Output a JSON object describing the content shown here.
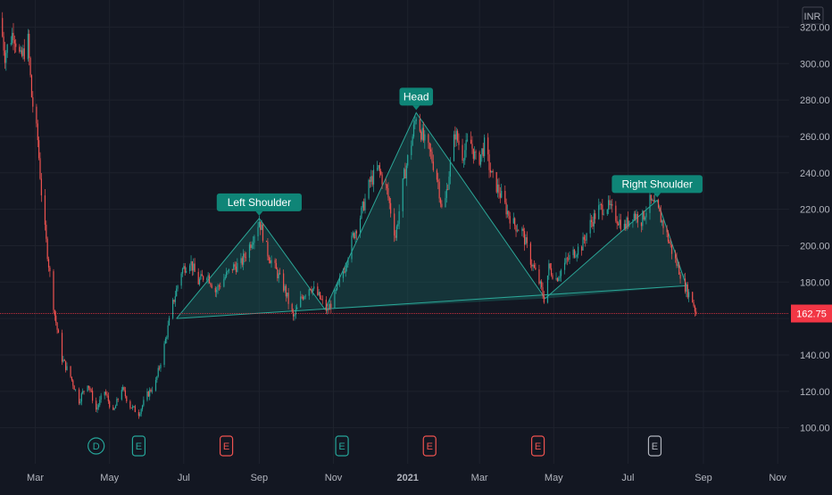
{
  "chart_data": {
    "type": "candlestick",
    "currency": "INR",
    "ylim": [
      92,
      330
    ],
    "y_ticks": [
      100,
      120,
      140,
      160,
      180,
      200,
      220,
      240,
      260,
      280,
      300,
      320
    ],
    "y_tick_labels": [
      "100.00",
      "120.00",
      "140.00",
      "160.00",
      "180.00",
      "200.00",
      "220.00",
      "240.00",
      "260.00",
      "280.00",
      "300.00",
      "320.00"
    ],
    "x_range": [
      "2020-02-01",
      "2021-11-15"
    ],
    "x_ticks": [
      {
        "date": "2020-03-01",
        "label": "Mar"
      },
      {
        "date": "2020-05-01",
        "label": "May"
      },
      {
        "date": "2020-07-01",
        "label": "Jul"
      },
      {
        "date": "2020-09-01",
        "label": "Sep"
      },
      {
        "date": "2020-11-01",
        "label": "Nov"
      },
      {
        "date": "2021-01-01",
        "label": "2021"
      },
      {
        "date": "2021-03-01",
        "label": "Mar"
      },
      {
        "date": "2021-05-01",
        "label": "May"
      },
      {
        "date": "2021-07-01",
        "label": "Jul"
      },
      {
        "date": "2021-09-01",
        "label": "Sep"
      },
      {
        "date": "2021-11-01",
        "label": "Nov"
      }
    ],
    "price_path": [
      [
        "2020-02-01",
        325
      ],
      [
        "2020-02-05",
        305
      ],
      [
        "2020-02-12",
        318
      ],
      [
        "2020-02-18",
        302
      ],
      [
        "2020-02-24",
        312
      ],
      [
        "2020-02-27",
        282
      ],
      [
        "2020-03-03",
        258
      ],
      [
        "2020-03-07",
        220
      ],
      [
        "2020-03-12",
        190
      ],
      [
        "2020-03-17",
        162
      ],
      [
        "2020-03-23",
        138
      ],
      [
        "2020-03-30",
        128
      ],
      [
        "2020-04-06",
        115
      ],
      [
        "2020-04-13",
        125
      ],
      [
        "2020-04-20",
        110
      ],
      [
        "2020-04-27",
        120
      ],
      [
        "2020-05-04",
        108
      ],
      [
        "2020-05-11",
        122
      ],
      [
        "2020-05-18",
        112
      ],
      [
        "2020-05-25",
        108
      ],
      [
        "2020-06-01",
        118
      ],
      [
        "2020-06-08",
        125
      ],
      [
        "2020-06-15",
        145
      ],
      [
        "2020-06-22",
        168
      ],
      [
        "2020-06-29",
        186
      ],
      [
        "2020-07-06",
        192
      ],
      [
        "2020-07-13",
        180
      ],
      [
        "2020-07-20",
        185
      ],
      [
        "2020-07-27",
        175
      ],
      [
        "2020-08-03",
        182
      ],
      [
        "2020-08-10",
        188
      ],
      [
        "2020-08-17",
        190
      ],
      [
        "2020-08-24",
        200
      ],
      [
        "2020-09-01",
        214
      ],
      [
        "2020-09-08",
        196
      ],
      [
        "2020-09-15",
        186
      ],
      [
        "2020-09-22",
        176
      ],
      [
        "2020-09-29",
        160
      ],
      [
        "2020-10-06",
        172
      ],
      [
        "2020-10-13",
        178
      ],
      [
        "2020-10-20",
        172
      ],
      [
        "2020-10-27",
        164
      ],
      [
        "2020-11-03",
        174
      ],
      [
        "2020-11-10",
        188
      ],
      [
        "2020-11-17",
        205
      ],
      [
        "2020-11-24",
        218
      ],
      [
        "2020-12-01",
        235
      ],
      [
        "2020-12-08",
        242
      ],
      [
        "2020-12-15",
        230
      ],
      [
        "2020-12-22",
        205
      ],
      [
        "2020-12-29",
        238
      ],
      [
        "2021-01-05",
        260
      ],
      [
        "2021-01-08",
        272
      ],
      [
        "2021-01-14",
        258
      ],
      [
        "2021-01-20",
        250
      ],
      [
        "2021-01-26",
        235
      ],
      [
        "2021-01-30",
        215
      ],
      [
        "2021-02-04",
        240
      ],
      [
        "2021-02-09",
        262
      ],
      [
        "2021-02-15",
        250
      ],
      [
        "2021-02-21",
        258
      ],
      [
        "2021-02-27",
        245
      ],
      [
        "2021-03-05",
        255
      ],
      [
        "2021-03-11",
        238
      ],
      [
        "2021-03-17",
        230
      ],
      [
        "2021-03-23",
        220
      ],
      [
        "2021-03-29",
        212
      ],
      [
        "2021-04-05",
        208
      ],
      [
        "2021-04-12",
        192
      ],
      [
        "2021-04-19",
        180
      ],
      [
        "2021-04-23",
        171
      ],
      [
        "2021-04-27",
        188
      ],
      [
        "2021-05-03",
        182
      ],
      [
        "2021-05-10",
        190
      ],
      [
        "2021-05-17",
        196
      ],
      [
        "2021-05-24",
        200
      ],
      [
        "2021-05-31",
        212
      ],
      [
        "2021-06-07",
        220
      ],
      [
        "2021-06-14",
        222
      ],
      [
        "2021-06-21",
        216
      ],
      [
        "2021-06-28",
        210
      ],
      [
        "2021-07-05",
        218
      ],
      [
        "2021-07-12",
        214
      ],
      [
        "2021-07-19",
        224
      ],
      [
        "2021-07-25",
        220
      ],
      [
        "2021-08-01",
        208
      ],
      [
        "2021-08-07",
        195
      ],
      [
        "2021-08-13",
        185
      ],
      [
        "2021-08-18",
        176
      ],
      [
        "2021-08-23",
        170
      ],
      [
        "2021-08-26",
        162.75
      ]
    ],
    "last_price": 162.75,
    "last_price_label": "162.75",
    "pattern": {
      "name": "Head and Shoulders",
      "points": [
        {
          "date": "2020-06-25",
          "price": 160
        },
        {
          "date": "2020-09-01",
          "price": 215
        },
        {
          "date": "2020-10-25",
          "price": 165
        },
        {
          "date": "2021-01-08",
          "price": 273
        },
        {
          "date": "2021-04-24",
          "price": 171
        },
        {
          "date": "2021-07-25",
          "price": 225
        },
        {
          "date": "2021-08-18",
          "price": 178
        }
      ],
      "labels": [
        {
          "text": "Left Shoulder",
          "date": "2020-09-01",
          "price": 215
        },
        {
          "text": "Head",
          "date": "2021-01-08",
          "price": 273
        },
        {
          "text": "Right Shoulder",
          "date": "2021-07-25",
          "price": 225
        }
      ]
    },
    "events": [
      {
        "letter": "D",
        "date": "2020-04-20",
        "kind": "dividend"
      },
      {
        "letter": "E",
        "date": "2020-05-25",
        "kind": "earnings-beat"
      },
      {
        "letter": "E",
        "date": "2020-08-05",
        "kind": "earnings-miss"
      },
      {
        "letter": "E",
        "date": "2020-11-08",
        "kind": "earnings-beat"
      },
      {
        "letter": "E",
        "date": "2021-01-19",
        "kind": "earnings-miss"
      },
      {
        "letter": "E",
        "date": "2021-04-18",
        "kind": "earnings-miss"
      },
      {
        "letter": "E",
        "date": "2021-07-23",
        "kind": "upcoming"
      }
    ]
  },
  "colors": {
    "background": "#131722",
    "grid": "#1e222d",
    "axis_text": "#b2b5be",
    "up": "#26a69a",
    "down": "#ef5350",
    "pattern_line": "#2ba697",
    "pattern_fill": "#1a6b63",
    "label_bg": "#0f8577",
    "last_price_bg": "#f23645",
    "event_dividend": "#26a69a",
    "event_beat": "#26a69a",
    "event_miss": "#ef5350",
    "event_upcoming": "#b2b5be"
  }
}
